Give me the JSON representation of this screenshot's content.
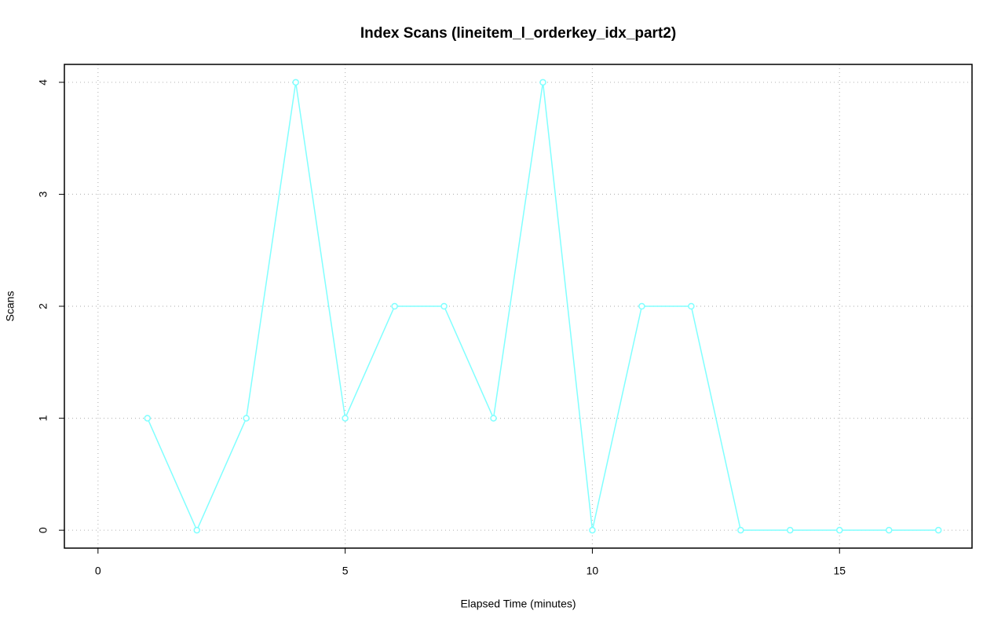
{
  "chart_data": {
    "type": "line",
    "title": "Index Scans (lineitem_l_orderkey_idx_part2)",
    "x_label": "Elapsed Time (minutes)",
    "y_label": "Scans",
    "x": [
      1,
      2,
      3,
      4,
      5,
      6,
      7,
      8,
      9,
      10,
      11,
      12,
      13,
      14,
      15,
      16,
      17
    ],
    "values": [
      1,
      0,
      1,
      4,
      1,
      2,
      2,
      1,
      4,
      0,
      2,
      2,
      0,
      0,
      0,
      0,
      0
    ],
    "color": "#80ffff",
    "markers": true,
    "xlim": [
      -0.68,
      17.68
    ],
    "xticks": [
      0,
      5,
      10,
      15
    ],
    "ylim": [
      -0.16,
      4.16
    ],
    "yticks": [
      0,
      1,
      2,
      3,
      4
    ],
    "grid": true
  }
}
